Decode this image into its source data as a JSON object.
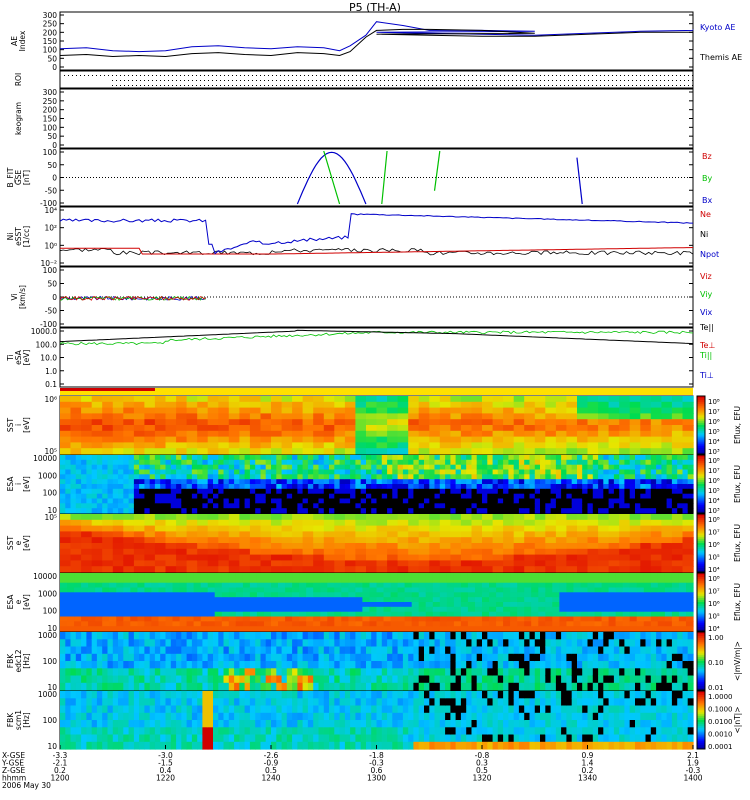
{
  "title": "P5 (TH-A)",
  "chart_data": [
    {
      "panel": "ae",
      "type": "line",
      "ylabel": "AE Index",
      "yticks": [
        "300",
        "250",
        "200",
        "150",
        "100",
        "50",
        "0"
      ],
      "ylim": [
        0,
        300
      ],
      "series": [
        {
          "name": "Kyoto AE",
          "color": "#0000c8",
          "x": [
            1200,
            1205,
            1210,
            1215,
            1220,
            1225,
            1230,
            1235,
            1240,
            1245,
            1250,
            1253,
            1255,
            1258,
            1260,
            1265,
            1270,
            1280,
            1290,
            1300,
            1310,
            1320,
            1330,
            1340,
            1350,
            1360,
            1400
          ],
          "y": [
            110,
            115,
            100,
            95,
            100,
            120,
            125,
            115,
            110,
            120,
            115,
            100,
            125,
            180,
            250,
            230,
            205,
            205,
            200,
            195,
            190,
            185,
            180,
            190,
            200,
            205,
            210
          ]
        },
        {
          "name": "Themis AE",
          "color": "#000000",
          "x": [
            1200,
            1205,
            1210,
            1215,
            1220,
            1225,
            1230,
            1235,
            1240,
            1245,
            1250,
            1253,
            1255,
            1258,
            1260,
            1265,
            1270,
            1280,
            1290,
            1300,
            1310,
            1320,
            1330,
            1340,
            1350,
            1360,
            1400
          ],
          "y": [
            75,
            80,
            70,
            75,
            70,
            85,
            90,
            80,
            75,
            90,
            85,
            75,
            95,
            170,
            205,
            210,
            210,
            205,
            190,
            185,
            180,
            175,
            175,
            185,
            195,
            195,
            205
          ]
        }
      ]
    },
    {
      "panel": "roi",
      "type": "scatter",
      "ylabel": "ROI"
    },
    {
      "panel": "keogram",
      "type": "line",
      "ylabel": "keogram",
      "yticks": [
        "300",
        "250",
        "200",
        "150",
        "100",
        "50",
        "0"
      ]
    },
    {
      "panel": "bfit",
      "type": "line",
      "ylabel": "B_FIT GSE [nT]",
      "yticks": [
        "100",
        "50",
        "0",
        "-50",
        "-100"
      ],
      "ylim": [
        -100,
        100
      ],
      "series": [
        {
          "name": "Bz",
          "color": "#d00000"
        },
        {
          "name": "By",
          "color": "#00c000"
        },
        {
          "name": "Bx",
          "color": "#0000c8"
        }
      ]
    },
    {
      "panel": "density",
      "type": "line",
      "ylabel": "Ni eSST [1/cc]",
      "yticks": [
        "10⁴",
        "10²",
        "10⁰",
        "10⁻²"
      ],
      "series": [
        {
          "name": "Ne",
          "color": "#d00000"
        },
        {
          "name": "Ni",
          "color": "#000000"
        },
        {
          "name": "Npot",
          "color": "#0000c8"
        }
      ]
    },
    {
      "panel": "velocity",
      "type": "line",
      "ylabel": "Vi [km/s]",
      "yticks": [
        "100",
        "50",
        "0",
        "-50",
        "-100"
      ],
      "ylim": [
        -100,
        100
      ],
      "series": [
        {
          "name": "Viz",
          "color": "#d00000"
        },
        {
          "name": "Viy",
          "color": "#00c000"
        },
        {
          "name": "Vix",
          "color": "#0000c8"
        }
      ]
    },
    {
      "panel": "temp",
      "type": "line",
      "ylabel": "Ti eSA [eV]",
      "yticks": [
        "1000.0",
        "100.0",
        "10.0",
        "1.0",
        "0.1"
      ],
      "series": [
        {
          "name": "Te||",
          "color": "#000000"
        },
        {
          "name": "Te⊥",
          "color": "#d00000"
        },
        {
          "name": "Ti||",
          "color": "#00c000"
        },
        {
          "name": "Ti⊥",
          "color": "#0000c8"
        }
      ]
    },
    {
      "panel": "sst_i",
      "type": "heatmap",
      "ylabel": "SST i [eV]",
      "yticks": [
        "10⁶",
        "10⁵"
      ],
      "cbar_label": "Eflux, EFU",
      "cbar_ticks": [
        "10⁸",
        "10⁷",
        "10⁶",
        "10⁵",
        "10⁴",
        "10³"
      ]
    },
    {
      "panel": "esa_i",
      "type": "heatmap",
      "ylabel": "ESA i [eV]",
      "yticks": [
        "10000",
        "1000",
        "100",
        "10"
      ],
      "cbar_label": "Eflux, EFU",
      "cbar_ticks": [
        "10⁸",
        "10⁷",
        "10⁶",
        "10⁵",
        "10⁴",
        "10³"
      ]
    },
    {
      "panel": "sst_e",
      "type": "heatmap",
      "ylabel": "SST e [eV]",
      "yticks": [
        "10⁵"
      ],
      "cbar_label": "Eflux, EFU",
      "cbar_ticks": [
        "10⁸",
        "10⁷",
        "10⁶",
        "10⁵",
        "10⁴"
      ]
    },
    {
      "panel": "esa_e",
      "type": "heatmap",
      "ylabel": "ESA e [eV]",
      "yticks": [
        "10000",
        "1000",
        "100",
        "10"
      ],
      "cbar_label": "Eflux, EFU",
      "cbar_ticks": [
        "10⁸",
        "10⁷",
        "10⁶",
        "10⁵",
        "10⁴"
      ]
    },
    {
      "panel": "fbk_e",
      "type": "heatmap",
      "ylabel": "FBK edc12 [Hz]",
      "yticks": [
        "1000",
        "100",
        "10"
      ],
      "cbar_label": "<|mV/m|>",
      "cbar_ticks": [
        "1.00",
        "0.10",
        "0.01"
      ]
    },
    {
      "panel": "fbk_b",
      "type": "heatmap",
      "ylabel": "FBK scm1 [Hz]",
      "yticks": [
        "1000",
        "100",
        "10"
      ],
      "cbar_label": "<|nT|>",
      "cbar_ticks": [
        "1.0000",
        "0.1000",
        "0.0100",
        "0.0010",
        "0.0001"
      ]
    }
  ],
  "xaxis": {
    "row_labels": [
      "X-GSE",
      "Y-GSE",
      "Z-GSE",
      "hhmm",
      "2006 May 30"
    ],
    "ticks": [
      {
        "vals": [
          "-3.3",
          "-2.1",
          "0.2",
          "1200"
        ]
      },
      {
        "vals": [
          "-3.0",
          "-1.5",
          "0.4",
          "1220"
        ]
      },
      {
        "vals": [
          "-2.6",
          "-0.9",
          "0.5",
          "1240"
        ]
      },
      {
        "vals": [
          "-1.8",
          "-0.3",
          "0.6",
          "1300"
        ]
      },
      {
        "vals": [
          "-0.8",
          "0.3",
          "0.5",
          "1320"
        ]
      },
      {
        "vals": [
          "0.9",
          "1.4",
          "0.2",
          "1340"
        ]
      },
      {
        "vals": [
          "2.1",
          "1.9",
          "-0.3",
          "1400"
        ]
      }
    ]
  },
  "colors": {
    "red": "#d00000",
    "green": "#00c000",
    "blue": "#0000c8"
  }
}
